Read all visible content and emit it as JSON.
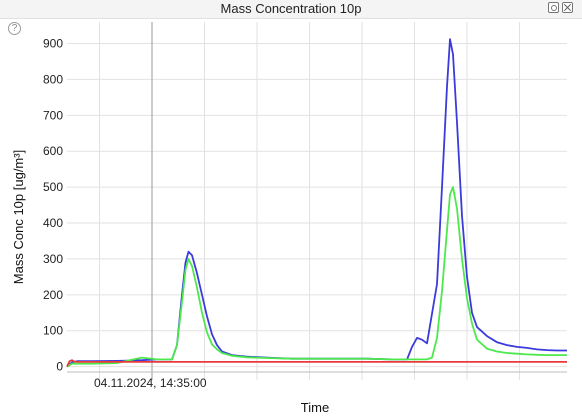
{
  "window": {
    "title": "Mass Concentration 10p",
    "help_symbol": "?"
  },
  "chart_data": {
    "type": "line",
    "title": "Mass Concentration 10p",
    "xlabel": "Time",
    "ylabel": "Mass Conc 10p [ug/m³]",
    "ylim": [
      -15,
      960
    ],
    "yticks": [
      0,
      100,
      200,
      300,
      400,
      500,
      600,
      700,
      800,
      900
    ],
    "xlim": [
      0,
      100
    ],
    "xtick_labels": [
      {
        "x": 17,
        "label": "04.11.2024, 14:35:00"
      }
    ],
    "grid": true,
    "legend": "none",
    "series": [
      {
        "color": "#3b3bdc",
        "x": [
          0,
          1,
          2,
          5,
          10,
          15,
          18,
          21,
          22,
          23,
          23.7,
          24.3,
          25,
          26,
          27,
          28,
          29,
          30,
          31,
          33,
          36,
          40,
          45,
          50,
          60,
          65,
          68,
          69,
          70,
          71,
          72,
          74,
          75,
          76,
          76.6,
          77.2,
          78,
          79,
          80,
          81,
          82,
          84,
          86,
          88,
          90,
          92,
          94,
          96,
          98,
          100
        ],
        "values": [
          0,
          12,
          15,
          15,
          16,
          18,
          20,
          20,
          60,
          200,
          290,
          320,
          310,
          260,
          200,
          140,
          90,
          60,
          42,
          32,
          28,
          25,
          22,
          22,
          22,
          20,
          20,
          55,
          80,
          75,
          65,
          230,
          500,
          780,
          912,
          870,
          680,
          420,
          250,
          150,
          110,
          85,
          68,
          60,
          55,
          52,
          48,
          46,
          45,
          45
        ]
      },
      {
        "color": "#4de84d",
        "x": [
          0,
          1,
          2,
          5,
          10,
          15,
          18,
          21,
          22,
          23,
          23.7,
          24.3,
          25,
          26,
          27,
          28,
          29,
          30,
          31,
          33,
          36,
          40,
          45,
          50,
          60,
          65,
          68,
          70,
          72,
          73,
          74,
          75,
          76,
          76.6,
          77.2,
          78,
          79,
          80,
          81,
          82,
          84,
          86,
          88,
          90,
          92,
          94,
          96,
          98,
          100
        ],
        "values": [
          0,
          8,
          8,
          8,
          10,
          25,
          20,
          20,
          60,
          180,
          270,
          300,
          280,
          220,
          150,
          95,
          62,
          48,
          38,
          30,
          26,
          24,
          22,
          22,
          22,
          20,
          20,
          20,
          20,
          25,
          80,
          210,
          380,
          480,
          500,
          440,
          300,
          190,
          120,
          75,
          50,
          42,
          38,
          36,
          34,
          33,
          32,
          32,
          32
        ]
      },
      {
        "color": "#e83a3a",
        "x": [
          0,
          0.5,
          1,
          1.5,
          2,
          100
        ],
        "values": [
          0,
          15,
          18,
          14,
          13,
          13
        ]
      }
    ]
  }
}
